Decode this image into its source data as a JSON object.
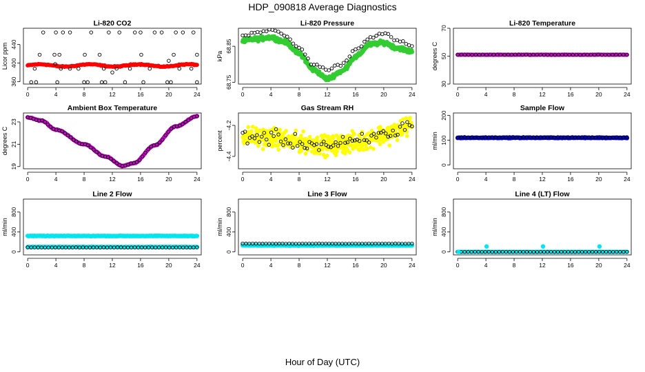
{
  "figure": {
    "title": "HDP_090818  Average Diagnostics",
    "xlabel": "Hour of Day (UTC)"
  },
  "chart_data": [
    {
      "type": "scatter",
      "title": "Li-820 CO2",
      "ylabel": "Licor ppm",
      "xlim": [
        0,
        24
      ],
      "ylim": [
        355,
        475
      ],
      "xticks": [
        "0",
        "4",
        "8",
        "12",
        "16",
        "20",
        "24"
      ],
      "yticks": [
        "360",
        "400",
        "440"
      ],
      "series": [
        {
          "name": "filled",
          "color": "#ff0000",
          "gen": "flat",
          "params": {
            "base": 395,
            "amp": 2.5,
            "period": 7,
            "noise": 1.5
          },
          "size": 3,
          "count": 190
        },
        {
          "name": "open",
          "color": "#000000",
          "gen": "outliers_co2",
          "open": true
        }
      ]
    },
    {
      "type": "scatter",
      "title": "Li-820 Pressure",
      "ylabel": "kPa",
      "xlim": [
        0,
        24
      ],
      "ylim": [
        68.745,
        68.9
      ],
      "xticks": [
        "0",
        "4",
        "8",
        "12",
        "16",
        "20",
        "24"
      ],
      "yticks": [
        "68.75",
        "68.85"
      ],
      "series": [
        {
          "name": "filled",
          "color": "#33cc33",
          "gen": "pressure_green",
          "size": 3.2,
          "count": 360
        },
        {
          "name": "open",
          "color": "#000000",
          "gen": "pressure_black",
          "open": true,
          "count": 58
        }
      ]
    },
    {
      "type": "scatter",
      "title": "Li-820 Temperature",
      "ylabel": "degrees C",
      "xlim": [
        0,
        24
      ],
      "ylim": [
        30,
        70
      ],
      "xticks": [
        "0",
        "4",
        "8",
        "12",
        "16",
        "20",
        "24"
      ],
      "yticks": [
        "30",
        "50",
        "70"
      ],
      "series": [
        {
          "name": "filled",
          "color": "#cc00cc",
          "gen": "flat",
          "params": {
            "base": 51,
            "amp": 0,
            "period": 10,
            "noise": 0.2
          },
          "size": 3,
          "count": 190
        },
        {
          "name": "open",
          "color": "#000000",
          "gen": "flat",
          "params": {
            "base": 51,
            "amp": 0,
            "period": 10,
            "noise": 0.2
          },
          "open": true,
          "count": 48
        }
      ]
    },
    {
      "type": "scatter",
      "title": "Ambient Box Temperature",
      "ylabel": "degrees C",
      "xlim": [
        0,
        24
      ],
      "ylim": [
        18.8,
        23.8
      ],
      "xticks": [
        "0",
        "4",
        "8",
        "12",
        "16",
        "20",
        "24"
      ],
      "yticks": [
        "19",
        "21",
        "23"
      ],
      "series": [
        {
          "name": "filled",
          "color": "#cc00cc",
          "gen": "ambient",
          "size": 3.2,
          "count": 150
        },
        {
          "name": "open",
          "color": "#000000",
          "gen": "ambient",
          "open": true,
          "count": 60
        }
      ]
    },
    {
      "type": "scatter",
      "title": "Gas Stream RH",
      "ylabel": "percent",
      "xlim": [
        0,
        24
      ],
      "ylim": [
        -4.48,
        -4.12
      ],
      "xticks": [
        "0",
        "4",
        "8",
        "12",
        "16",
        "20",
        "24"
      ],
      "yticks": [
        "-4.4",
        "-4.2"
      ],
      "series": [
        {
          "name": "filled",
          "color": "#ffff00",
          "gen": "rh",
          "size": 2.8,
          "count": 520,
          "params": {
            "noise": 0.09
          }
        },
        {
          "name": "open",
          "color": "#000000",
          "gen": "rh",
          "open": true,
          "count": 72,
          "params": {
            "noise": 0.07
          }
        }
      ]
    },
    {
      "type": "scatter",
      "title": "Sample Flow",
      "ylabel": "ml/min",
      "xlim": [
        0,
        24
      ],
      "ylim": [
        -15,
        210
      ],
      "xticks": [
        "0",
        "4",
        "8",
        "12",
        "16",
        "20",
        "24"
      ],
      "yticks": [
        "0",
        "100",
        "200"
      ],
      "series": [
        {
          "name": "filled",
          "color": "#0000cc",
          "gen": "flat",
          "params": {
            "base": 110,
            "amp": 0,
            "period": 10,
            "noise": 2
          },
          "size": 3.2,
          "count": 200
        },
        {
          "name": "open",
          "color": "#000000",
          "gen": "flat",
          "params": {
            "base": 112,
            "amp": 0,
            "period": 10,
            "noise": 2
          },
          "open": true,
          "count": 50
        }
      ]
    },
    {
      "type": "scatter",
      "title": "Line 2 Flow",
      "ylabel": "ml/min",
      "xlim": [
        0,
        24
      ],
      "ylim": [
        -60,
        1060
      ],
      "xticks": [
        "0",
        "4",
        "8",
        "12",
        "16",
        "20",
        "24"
      ],
      "yticks": [
        "0",
        "400",
        "800"
      ],
      "series": [
        {
          "name": "upper",
          "color": "#00e5ee",
          "gen": "flat",
          "params": {
            "base": 320,
            "amp": 0,
            "period": 10,
            "noise": 6
          },
          "size": 3.2,
          "count": 200
        },
        {
          "name": "lower",
          "color": "#00e5ee",
          "gen": "flat",
          "params": {
            "base": 100,
            "amp": 0,
            "period": 10,
            "noise": 4
          },
          "size": 3.2,
          "count": 160
        },
        {
          "name": "open",
          "color": "#000000",
          "gen": "flat",
          "params": {
            "base": 90,
            "amp": 0,
            "period": 10,
            "noise": 3
          },
          "open": true,
          "count": 50
        }
      ]
    },
    {
      "type": "scatter",
      "title": "Line 3 Flow",
      "ylabel": "ml/min",
      "xlim": [
        0,
        24
      ],
      "ylim": [
        -60,
        1060
      ],
      "xticks": [
        "0",
        "4",
        "8",
        "12",
        "16",
        "20",
        "24"
      ],
      "yticks": [
        "0",
        "400",
        "800"
      ],
      "series": [
        {
          "name": "filled",
          "color": "#00e5ee",
          "gen": "flat",
          "params": {
            "base": 130,
            "amp": 0,
            "period": 10,
            "noise": 8
          },
          "size": 3.2,
          "count": 220
        },
        {
          "name": "open",
          "color": "#000000",
          "gen": "flat",
          "params": {
            "base": 165,
            "amp": 0,
            "period": 10,
            "noise": 3
          },
          "open": true,
          "count": 52
        }
      ]
    },
    {
      "type": "scatter",
      "title": "Line 4 (LT) Flow",
      "ylabel": "ml/min",
      "xlim": [
        0,
        24
      ],
      "ylim": [
        -60,
        1060
      ],
      "xticks": [
        "0",
        "4",
        "8",
        "12",
        "16",
        "20",
        "24"
      ],
      "yticks": [
        "0",
        "400",
        "800"
      ],
      "series": [
        {
          "name": "filled",
          "color": "#00e5ee",
          "gen": "flat",
          "params": {
            "base": 2,
            "amp": 0,
            "period": 10,
            "noise": 2
          },
          "size": 3,
          "count": 160
        },
        {
          "name": "open",
          "color": "#000000",
          "gen": "flat",
          "params": {
            "base": 0,
            "amp": 0,
            "period": 10,
            "noise": 2
          },
          "open": true,
          "count": 50
        },
        {
          "name": "spikes",
          "color": "#00e5ee",
          "gen": "spikes",
          "size": 3.2,
          "x": [
            0.1,
            4.1,
            12.1,
            20.1
          ],
          "y": [
            0,
            110,
            110,
            110
          ]
        }
      ]
    }
  ]
}
